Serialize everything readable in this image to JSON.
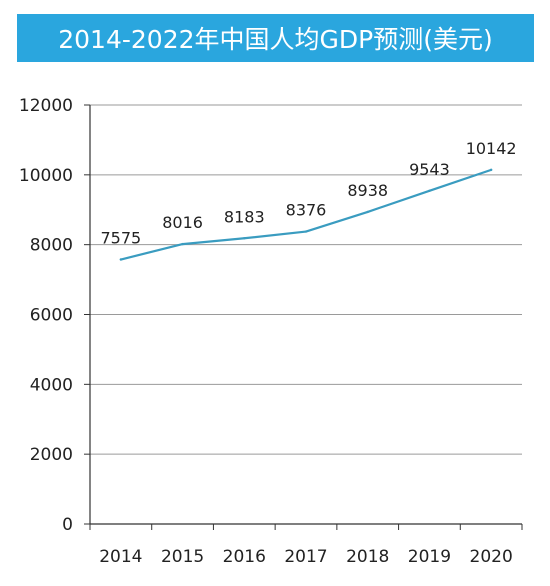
{
  "colors": {
    "title_bg": "#2aa6de",
    "line": "#3a9cc0",
    "grid": "#9a9a9a",
    "axis": "#333333"
  },
  "chart_data": {
    "type": "line",
    "title": "2014-2022年中国人均GDP预测(美元)",
    "categories": [
      "2014",
      "2015",
      "2016",
      "2017",
      "2018",
      "2019",
      "2020"
    ],
    "series": [
      {
        "values": [
          7575,
          8016,
          8183,
          8376,
          8938,
          9543,
          10142
        ]
      }
    ],
    "data_labels": [
      "7575",
      "8016",
      "8183",
      "8376",
      "8938",
      "9543",
      "10142"
    ],
    "y_ticks": [
      0,
      2000,
      4000,
      6000,
      8000,
      10000,
      12000
    ],
    "y_tick_labels": [
      "0",
      "2000",
      "4000",
      "6000",
      "8000",
      "10000",
      "12000"
    ],
    "ylim": [
      0,
      12000
    ],
    "grid": "horizontal",
    "legend": "none",
    "xlabel": "",
    "ylabel": ""
  }
}
